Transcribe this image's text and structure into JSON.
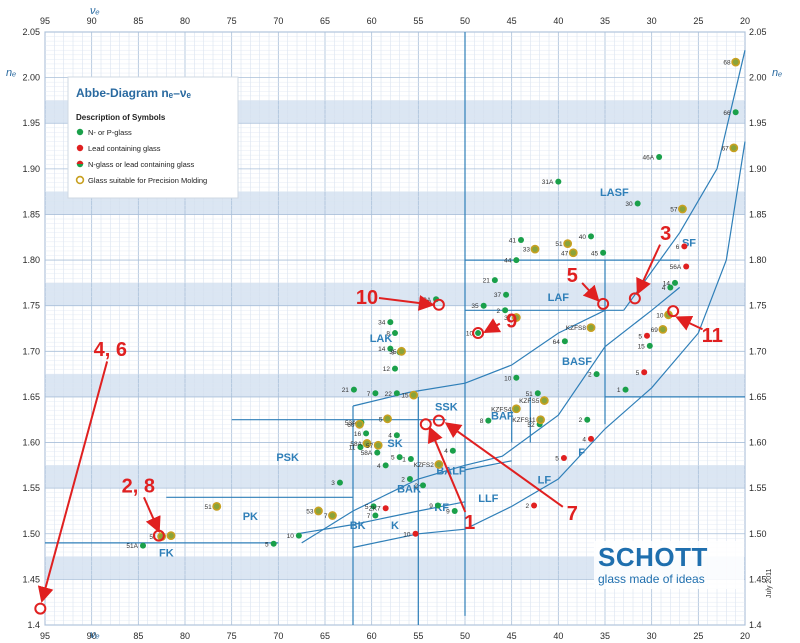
{
  "chart_data": {
    "type": "scatter",
    "title": "Abbe-Diagram nₑ–νₑ",
    "xlabel": "νₑ",
    "ylabel": "nₑ",
    "xlim": [
      95,
      20
    ],
    "ylim": [
      1.4,
      2.05
    ],
    "x_ticks": [
      "95",
      "90",
      "85",
      "80",
      "75",
      "70",
      "65",
      "60",
      "55",
      "50",
      "45",
      "40",
      "35",
      "30",
      "25",
      "20"
    ],
    "y_ticks": [
      "1.4",
      "1.45",
      "1.50",
      "1.55",
      "1.60",
      "1.65",
      "1.70",
      "1.75",
      "1.80",
      "1.85",
      "1.90",
      "1.95",
      "2.00",
      "2.05"
    ],
    "grid": true,
    "date_label": "July 2011",
    "legend": {
      "description_heading": "Description of Symbols",
      "items": [
        {
          "label": "N- or P-glass",
          "color": "#1aa04a"
        },
        {
          "label": "Lead containing glass",
          "color": "#e02020"
        },
        {
          "label": "N-glass or lead containing glass",
          "color": "#7a9a30"
        },
        {
          "label": "Glass suitable for Precision Molding",
          "color": "#c8a020"
        }
      ]
    },
    "regions": [
      {
        "name": "FK",
        "x": 82,
        "y": 1.475
      },
      {
        "name": "PK",
        "x": 73,
        "y": 1.515
      },
      {
        "name": "PSK",
        "x": 69,
        "y": 1.58
      },
      {
        "name": "BK",
        "x": 61.5,
        "y": 1.505
      },
      {
        "name": "K",
        "x": 57.5,
        "y": 1.505
      },
      {
        "name": "BAK",
        "x": 56,
        "y": 1.545
      },
      {
        "name": "SK",
        "x": 57.5,
        "y": 1.595
      },
      {
        "name": "SSK",
        "x": 52,
        "y": 1.635
      },
      {
        "name": "BALF",
        "x": 51.5,
        "y": 1.565
      },
      {
        "name": "KF",
        "x": 52.5,
        "y": 1.525
      },
      {
        "name": "LLF",
        "x": 47.5,
        "y": 1.535
      },
      {
        "name": "LF",
        "x": 41.5,
        "y": 1.555
      },
      {
        "name": "F",
        "x": 37.5,
        "y": 1.585
      },
      {
        "name": "BAF",
        "x": 46,
        "y": 1.625
      },
      {
        "name": "BASF",
        "x": 38,
        "y": 1.685
      },
      {
        "name": "LAK",
        "x": 59,
        "y": 1.71
      },
      {
        "name": "LAF",
        "x": 40,
        "y": 1.755
      },
      {
        "name": "LASF",
        "x": 34,
        "y": 1.87
      },
      {
        "name": "SF",
        "x": 26,
        "y": 1.815
      }
    ],
    "series": [
      {
        "name": "N- or P-glass",
        "color": "#1aa04a",
        "points": [
          {
            "x": 84.5,
            "y": 1.487,
            "label": "51A"
          },
          {
            "x": 70.5,
            "y": 1.489,
            "label": "5"
          },
          {
            "x": 67.8,
            "y": 1.498,
            "label": "10"
          },
          {
            "x": 63.4,
            "y": 1.556,
            "label": "3"
          },
          {
            "x": 61.2,
            "y": 1.595,
            "label": "11"
          },
          {
            "x": 61.1,
            "y": 1.622,
            "label": "53A"
          },
          {
            "x": 60.6,
            "y": 1.61,
            "label": "16"
          },
          {
            "x": 59.4,
            "y": 1.589,
            "label": "58A"
          },
          {
            "x": 57.3,
            "y": 1.608,
            "label": "4"
          },
          {
            "x": 59.8,
            "y": 1.53,
            "label": "5"
          },
          {
            "x": 59.6,
            "y": 1.52,
            "label": "7"
          },
          {
            "x": 58.5,
            "y": 1.575,
            "label": "4"
          },
          {
            "x": 57.0,
            "y": 1.584,
            "label": "5"
          },
          {
            "x": 55.9,
            "y": 1.56,
            "label": "2"
          },
          {
            "x": 55.8,
            "y": 1.582,
            "label": "1"
          },
          {
            "x": 54.5,
            "y": 1.553,
            "label": "2"
          },
          {
            "x": 52.9,
            "y": 1.531,
            "label": "9"
          },
          {
            "x": 51.3,
            "y": 1.591,
            "label": "4"
          },
          {
            "x": 61.9,
            "y": 1.658,
            "label": "21"
          },
          {
            "x": 59.6,
            "y": 1.654,
            "label": "7"
          },
          {
            "x": 57.3,
            "y": 1.654,
            "label": "22"
          },
          {
            "x": 58.0,
            "y": 1.732,
            "label": "34"
          },
          {
            "x": 57.5,
            "y": 1.72,
            "label": "8"
          },
          {
            "x": 57.0,
            "y": 1.699,
            "label": "9"
          },
          {
            "x": 58.0,
            "y": 1.703,
            "label": "14"
          },
          {
            "x": 57.5,
            "y": 1.681,
            "label": "12"
          },
          {
            "x": 53.1,
            "y": 1.757,
            "label": "33A"
          },
          {
            "x": 48.0,
            "y": 1.75,
            "label": "35"
          },
          {
            "x": 48.6,
            "y": 1.72,
            "label": "10"
          },
          {
            "x": 45.6,
            "y": 1.762,
            "label": "37"
          },
          {
            "x": 45.7,
            "y": 1.745,
            "label": "2"
          },
          {
            "x": 46.8,
            "y": 1.778,
            "label": "21"
          },
          {
            "x": 44.0,
            "y": 1.822,
            "label": "41"
          },
          {
            "x": 44.5,
            "y": 1.8,
            "label": "44"
          },
          {
            "x": 40.0,
            "y": 1.886,
            "label": "31A"
          },
          {
            "x": 35.2,
            "y": 1.808,
            "label": "45"
          },
          {
            "x": 36.5,
            "y": 1.826,
            "label": "40"
          },
          {
            "x": 29.2,
            "y": 1.913,
            "label": "46A"
          },
          {
            "x": 31.5,
            "y": 1.862,
            "label": "30"
          },
          {
            "x": 21.0,
            "y": 1.962,
            "label": "66"
          },
          {
            "x": 27.5,
            "y": 1.775,
            "label": "14"
          },
          {
            "x": 28.0,
            "y": 1.77,
            "label": "4"
          },
          {
            "x": 39.3,
            "y": 1.711,
            "label": "64"
          },
          {
            "x": 35.9,
            "y": 1.675,
            "label": "2"
          },
          {
            "x": 30.2,
            "y": 1.706,
            "label": "15"
          },
          {
            "x": 32.8,
            "y": 1.658,
            "label": "1"
          },
          {
            "x": 44.5,
            "y": 1.671,
            "label": "10"
          },
          {
            "x": 42.2,
            "y": 1.654,
            "label": "51"
          },
          {
            "x": 47.5,
            "y": 1.624,
            "label": "8"
          },
          {
            "x": 42.0,
            "y": 1.62,
            "label": "52"
          },
          {
            "x": 36.9,
            "y": 1.625,
            "label": "2"
          },
          {
            "x": 51.1,
            "y": 1.525,
            "label": "9"
          }
        ]
      },
      {
        "name": "Lead containing glass",
        "color": "#e02020",
        "points": [
          {
            "x": 58.5,
            "y": 1.528,
            "label": "ZK7"
          },
          {
            "x": 55.3,
            "y": 1.5,
            "label": "10"
          },
          {
            "x": 42.6,
            "y": 1.531,
            "label": "2"
          },
          {
            "x": 39.4,
            "y": 1.583,
            "label": "5"
          },
          {
            "x": 36.5,
            "y": 1.604,
            "label": "4"
          },
          {
            "x": 30.5,
            "y": 1.717,
            "label": "5"
          },
          {
            "x": 30.8,
            "y": 1.677,
            "label": "5"
          },
          {
            "x": 26.3,
            "y": 1.793,
            "label": "56A"
          },
          {
            "x": 26.5,
            "y": 1.815,
            "label": "6"
          }
        ]
      },
      {
        "name": "Glass suitable for Precision Molding",
        "color": "#c8a020",
        "points": [
          {
            "x": 82.5,
            "y": 1.497,
            "label": "51"
          },
          {
            "x": 81.5,
            "y": 1.498,
            "label": ""
          },
          {
            "x": 76.6,
            "y": 1.53,
            "label": "51"
          },
          {
            "x": 65.7,
            "y": 1.525,
            "label": "53"
          },
          {
            "x": 64.2,
            "y": 1.52,
            "label": "7"
          },
          {
            "x": 60.5,
            "y": 1.599,
            "label": "58A"
          },
          {
            "x": 61.3,
            "y": 1.62,
            "label": "60"
          },
          {
            "x": 59.3,
            "y": 1.597,
            "label": "57"
          },
          {
            "x": 58.3,
            "y": 1.626,
            "label": "5"
          },
          {
            "x": 52.8,
            "y": 1.576,
            "label": "KZFS2"
          },
          {
            "x": 56.8,
            "y": 1.7,
            "label": "35"
          },
          {
            "x": 55.5,
            "y": 1.652,
            "label": "15"
          },
          {
            "x": 42.5,
            "y": 1.812,
            "label": "33"
          },
          {
            "x": 39.0,
            "y": 1.818,
            "label": "51"
          },
          {
            "x": 38.4,
            "y": 1.808,
            "label": "47"
          },
          {
            "x": 44.5,
            "y": 1.737,
            "label": "37"
          },
          {
            "x": 44.5,
            "y": 1.637,
            "label": "KZFS4"
          },
          {
            "x": 41.5,
            "y": 1.646,
            "label": "KZFS5"
          },
          {
            "x": 41.9,
            "y": 1.625,
            "label": "KZFS11"
          },
          {
            "x": 36.5,
            "y": 1.726,
            "label": "KZFS8"
          },
          {
            "x": 28.8,
            "y": 1.724,
            "label": "69"
          },
          {
            "x": 28.2,
            "y": 1.74,
            "label": "10"
          },
          {
            "x": 26.7,
            "y": 1.856,
            "label": "57"
          },
          {
            "x": 21.0,
            "y": 2.017,
            "label": "68"
          },
          {
            "x": 21.2,
            "y": 1.923,
            "label": "67"
          }
        ]
      }
    ],
    "callouts": [
      {
        "text": "1",
        "x": 49.5,
        "y": 1.505,
        "target": [
          54,
          1.622
        ]
      },
      {
        "text": "2, 8",
        "x": 85,
        "y": 1.545,
        "target": [
          82.5,
          1.497
        ]
      },
      {
        "text": "3",
        "x": 28.5,
        "y": 1.822,
        "target": [
          31.8,
          1.758
        ]
      },
      {
        "text": "4, 6",
        "x": 88,
        "y": 1.695,
        "target": [
          95.5,
          1.42
        ]
      },
      {
        "text": "5",
        "x": 38.5,
        "y": 1.776,
        "target": [
          35.2,
          1.752
        ]
      },
      {
        "text": "7",
        "x": 38.5,
        "y": 1.515,
        "target": [
          52.5,
          1.625
        ]
      },
      {
        "text": "9",
        "x": 45,
        "y": 1.726,
        "target": [
          48.5,
          1.72
        ]
      },
      {
        "text": "10",
        "x": 60.5,
        "y": 1.752,
        "target": [
          52.8,
          1.751
        ]
      },
      {
        "text": "11",
        "x": 23.5,
        "y": 1.71,
        "target": [
          27.8,
          1.741
        ]
      }
    ],
    "highlighted_circles": [
      {
        "x": 82.8,
        "y": 1.498
      },
      {
        "x": 95.5,
        "y": 1.418
      },
      {
        "x": 31.8,
        "y": 1.758
      },
      {
        "x": 35.2,
        "y": 1.752
      },
      {
        "x": 52.8,
        "y": 1.751
      },
      {
        "x": 48.6,
        "y": 1.72
      },
      {
        "x": 27.7,
        "y": 1.744
      },
      {
        "x": 54.2,
        "y": 1.62
      },
      {
        "x": 52.8,
        "y": 1.624
      }
    ]
  },
  "brand": {
    "name": "SCHOTT",
    "tagline": "glass made of ideas"
  }
}
